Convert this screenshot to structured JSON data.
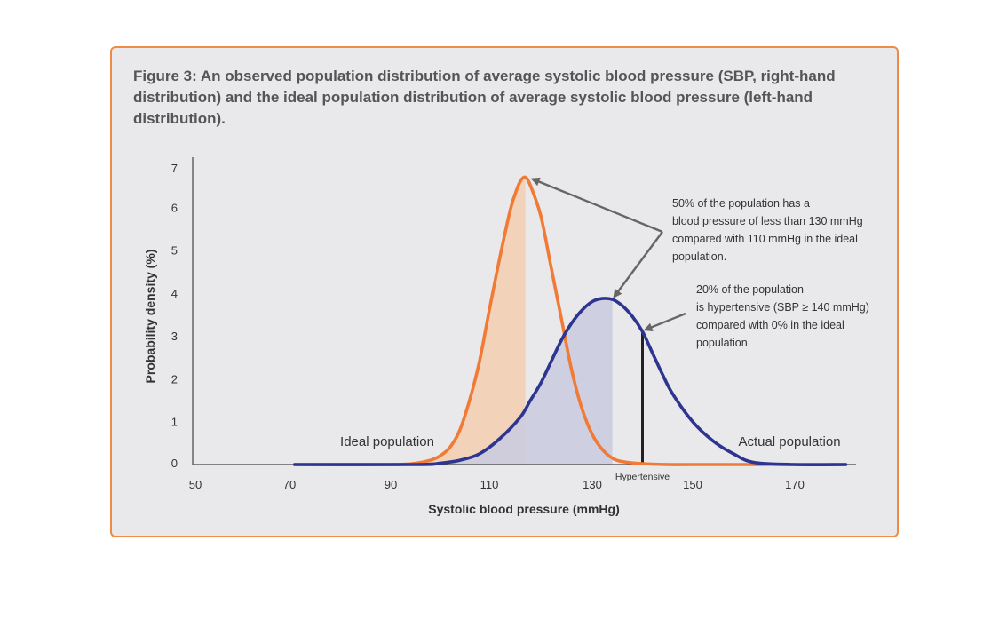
{
  "figure": {
    "title": "Figure 3: An observed population distribution of average systolic blood pressure (SBP, right-hand distribution) and the ideal population distribution of average systolic blood pressure (left-hand distribution)."
  },
  "colors": {
    "ideal": "#f07a36",
    "actual": "#2e3590",
    "ideal_fill": "#f3cfb4",
    "actual_fill": "#c9cbe1",
    "arrow": "#666666",
    "border": "#f08a45"
  },
  "annotations": {
    "median": "50% of the population has a\nblood pressure of less than 130 mmHg\ncompared with 110 mmHg in the ideal\npopulation.",
    "hypertensive": "20% of the population\nis hypertensive (SBP  ≥ 140 mmHg)\ncompared with 0% in the ideal\npopulation."
  },
  "chart_data": {
    "type": "line",
    "xlabel": "Systolic blood pressure (mmHg)",
    "ylabel": "Probability density (%)",
    "xlim": [
      50,
      180
    ],
    "ylim": [
      0,
      7
    ],
    "xticks": [
      50,
      70,
      90,
      110,
      130,
      150,
      170
    ],
    "yticks": [
      0,
      1,
      2,
      3,
      4,
      5,
      6,
      7
    ],
    "grid": false,
    "series": [
      {
        "name": "Ideal population",
        "x": [
          71,
          90,
          95,
          98,
          100,
          102,
          104,
          106,
          108,
          110,
          112,
          114,
          115,
          116,
          117,
          118,
          120,
          122,
          124,
          126,
          128,
          130,
          132,
          134,
          136,
          140,
          145,
          150,
          160,
          180
        ],
        "y": [
          0,
          0,
          0.03,
          0.1,
          0.2,
          0.4,
          0.8,
          1.5,
          2.4,
          3.6,
          4.8,
          5.9,
          6.3,
          6.6,
          6.7,
          6.5,
          5.8,
          4.6,
          3.4,
          2.2,
          1.3,
          0.7,
          0.35,
          0.15,
          0.07,
          0.02,
          0,
          0,
          0,
          0
        ],
        "shaded_to_x": 117
      },
      {
        "name": "Actual population",
        "x": [
          71,
          95,
          100,
          104,
          108,
          112,
          116,
          118,
          120,
          122,
          124,
          126,
          128,
          130,
          132,
          134,
          136,
          138,
          140,
          142,
          144,
          146,
          150,
          154,
          158,
          162,
          170,
          180
        ],
        "y": [
          0,
          0,
          0.03,
          0.1,
          0.25,
          0.6,
          1.1,
          1.5,
          1.9,
          2.4,
          2.9,
          3.3,
          3.6,
          3.8,
          3.87,
          3.85,
          3.7,
          3.45,
          3.1,
          2.6,
          2.1,
          1.65,
          1.0,
          0.55,
          0.25,
          0.05,
          0,
          0
        ],
        "shaded_to_x": 134
      }
    ],
    "labels": {
      "ideal": "Ideal population",
      "actual": "Actual population",
      "hypertensive": "Hypertensive"
    },
    "hypertensive_threshold": 140
  }
}
